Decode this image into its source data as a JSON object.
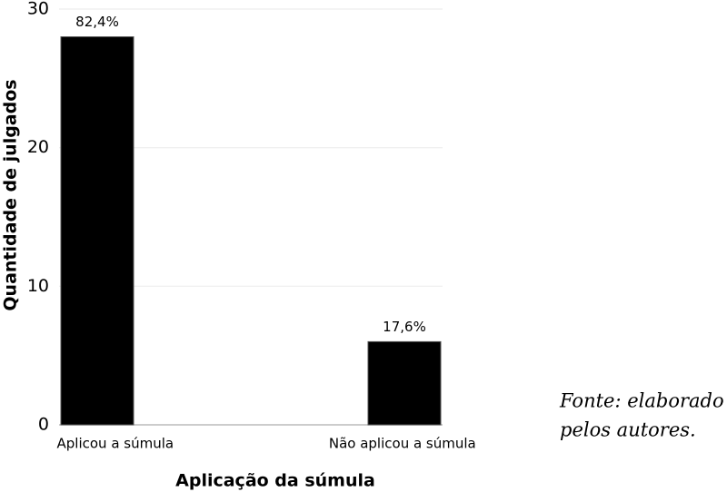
{
  "chart_data": {
    "type": "bar",
    "categories": [
      "Aplicou a súmula",
      "Não aplicou a súmula"
    ],
    "values": [
      28,
      6
    ],
    "annotations": [
      "82,4%",
      "17,6%"
    ],
    "color": "#000000",
    "xlabel": "Aplicação da súmula",
    "ylabel": "Quantidade de julgados",
    "ylim": [
      0,
      30
    ],
    "yticks": [
      0,
      10,
      20,
      30
    ],
    "grid": true,
    "source": [
      "Fonte: elaborado",
      "pelos autores."
    ]
  }
}
